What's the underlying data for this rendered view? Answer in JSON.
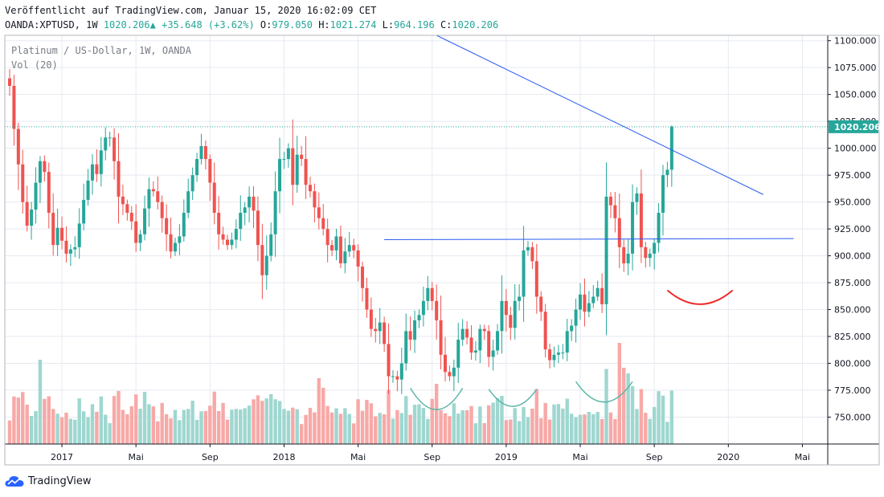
{
  "header": {
    "published": "Veröffentlicht auf TradingView.com, Januar 15, 2020 16:02:09 CET",
    "symbol": "OANDA:XPTUSD, 1W",
    "last": "1020.206",
    "change": "+35.648 (+3.62%)",
    "o_label": "O:",
    "o": "979.050",
    "h_label": "H:",
    "h": "1021.274",
    "l_label": "L:",
    "l": "964.196",
    "c_label": "C:",
    "c": "1020.206"
  },
  "legend": {
    "title": "Platinum / US-Dollar, 1W, OANDA",
    "volume": "Vol (20)"
  },
  "footer": {
    "brand": "TradingView"
  },
  "colors": {
    "up": "#26a69a",
    "down": "#ef5350",
    "vol_up": "#9fd7d0",
    "vol_down": "#f7a9a7",
    "trendline": "#2a5cf0",
    "grid": "#e6eaf0",
    "price_label_bg": "#26a69a",
    "arc_red": "#ef2b2b",
    "arc_teal": "#5ab5a7"
  },
  "chart_data": {
    "type": "candlestick",
    "title": "Platinum / US-Dollar, 1W, OANDA",
    "interval": "1W",
    "y_axis": {
      "min": 725,
      "max": 1105,
      "ticks": [
        "1100.000",
        "1075.000",
        "1050.000",
        "1025.000",
        "1000.000",
        "975.000",
        "950.000",
        "925.000",
        "900.000",
        "875.000",
        "850.000",
        "825.000",
        "800.000",
        "775.000",
        "750.000"
      ],
      "last_price_label": "1020.206"
    },
    "x_axis": {
      "labels": [
        {
          "label": "2017",
          "index": 12
        },
        {
          "label": "Mai",
          "index": 29
        },
        {
          "label": "Sep",
          "index": 46
        },
        {
          "label": "2018",
          "index": 63
        },
        {
          "label": "Mai",
          "index": 80
        },
        {
          "label": "Sep",
          "index": 97
        },
        {
          "label": "2019",
          "index": 114
        },
        {
          "label": "Mai",
          "index": 131
        },
        {
          "label": "Sep",
          "index": 148
        },
        {
          "label": "2020",
          "index": 165
        },
        {
          "label": "Mai",
          "index": 182
        }
      ]
    },
    "closes": [
      1058,
      1018,
      985,
      950,
      928,
      943,
      968,
      988,
      978,
      940,
      910,
      926,
      914,
      902,
      906,
      908,
      930,
      952,
      970,
      985,
      976,
      998,
      1010,
      1010,
      988,
      955,
      948,
      940,
      932,
      912,
      920,
      944,
      962,
      960,
      950,
      935,
      920,
      904,
      912,
      918,
      940,
      960,
      975,
      990,
      1002,
      990,
      968,
      940,
      920,
      915,
      910,
      915,
      925,
      940,
      945,
      955,
      942,
      910,
      882,
      900,
      920,
      960,
      990,
      990,
      1000,
      966,
      994,
      990,
      966,
      960,
      945,
      935,
      925,
      910,
      905,
      918,
      893,
      904,
      910,
      905,
      890,
      870,
      850,
      832,
      830,
      838,
      818,
      788,
      788,
      785,
      800,
      830,
      822,
      840,
      845,
      858,
      870,
      858,
      840,
      808,
      792,
      788,
      796,
      822,
      832,
      824,
      810,
      812,
      832,
      830,
      806,
      812,
      830,
      858,
      845,
      833,
      858,
      862,
      905,
      908,
      895,
      862,
      848,
      813,
      803,
      808,
      810,
      810,
      830,
      835,
      850,
      864,
      848,
      856,
      862,
      870,
      855,
      955,
      947,
      935,
      908,
      893,
      902,
      950,
      958,
      908,
      898,
      902,
      912,
      940,
      975,
      980,
      1020
    ],
    "opens_note": "open of each candle equals previous close",
    "start_open": 1065,
    "volume": "relative bar heights only, no numeric scale shown",
    "trendlines": [
      {
        "name": "descending resistance",
        "from": {
          "index": 98,
          "price": 1105
        },
        "to": {
          "index": 173,
          "price": 957
        }
      },
      {
        "name": "horizontal neckline",
        "from": {
          "index": 86,
          "price": 915
        },
        "to": {
          "index": 180,
          "price": 916
        }
      }
    ],
    "annotations": [
      {
        "type": "arc",
        "color": "teal",
        "from_index": 92,
        "to_index": 104,
        "price_ends": 777,
        "price_bottom": 757
      },
      {
        "type": "arc",
        "color": "teal",
        "from_index": 110,
        "to_index": 121,
        "price_ends": 776,
        "price_bottom": 760
      },
      {
        "type": "arc",
        "color": "teal",
        "from_index": 130,
        "to_index": 143,
        "price_ends": 783,
        "price_bottom": 764
      },
      {
        "type": "arc",
        "color": "red",
        "from_index": 151,
        "to_index": 166,
        "price_ends": 868,
        "price_bottom": 855
      }
    ]
  }
}
